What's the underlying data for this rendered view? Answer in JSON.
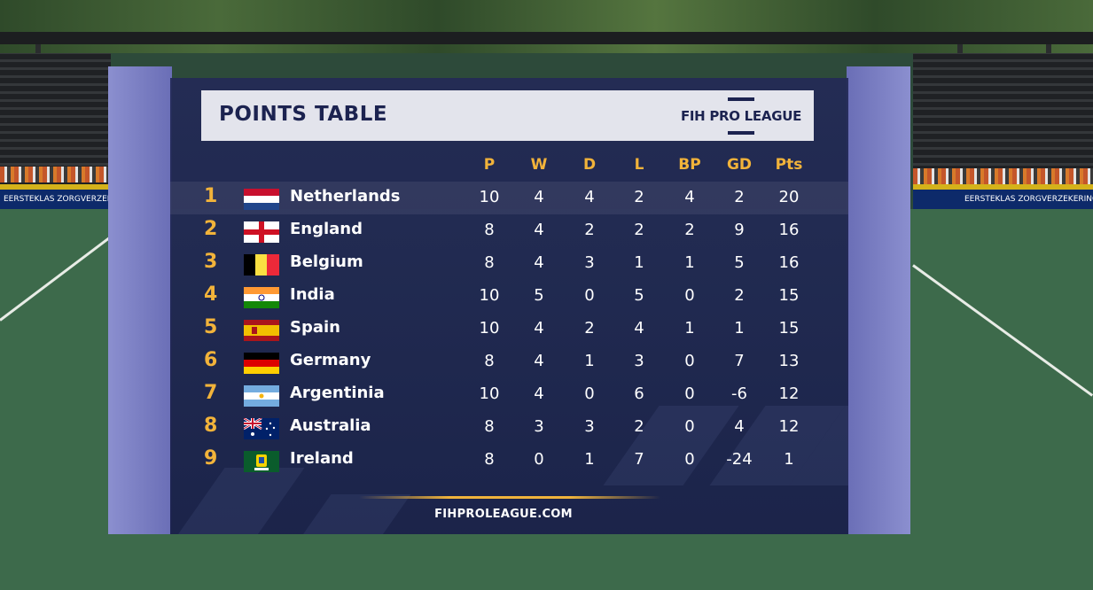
{
  "title": "POINTS TABLE",
  "brand": "FIH PRO LEAGUE",
  "footer": "FIHPROLEAGUE.COM",
  "ad_left": "EERSTEKLAS ZORGVERZEKERING",
  "ad_right": "EERSTEKLAS ZORGVERZEKERING",
  "columns": [
    "P",
    "W",
    "D",
    "L",
    "BP",
    "GD",
    "Pts"
  ],
  "colors": {
    "accent": "#f2b33a",
    "panel": "#232a56",
    "header_bg": "#e3e4ec",
    "header_text": "#1c2350",
    "frame": "#7a7ec4"
  },
  "rows": [
    {
      "rank": "1",
      "team": "Netherlands",
      "flag": "netherlands-flag-icon",
      "stats": [
        "10",
        "4",
        "4",
        "2",
        "4",
        "2",
        "20"
      ]
    },
    {
      "rank": "2",
      "team": "England",
      "flag": "england-flag-icon",
      "stats": [
        "8",
        "4",
        "2",
        "2",
        "2",
        "9",
        "16"
      ]
    },
    {
      "rank": "3",
      "team": "Belgium",
      "flag": "belgium-flag-icon",
      "stats": [
        "8",
        "4",
        "3",
        "1",
        "1",
        "5",
        "16"
      ]
    },
    {
      "rank": "4",
      "team": "India",
      "flag": "india-flag-icon",
      "stats": [
        "10",
        "5",
        "0",
        "5",
        "0",
        "2",
        "15"
      ]
    },
    {
      "rank": "5",
      "team": "Spain",
      "flag": "spain-flag-icon",
      "stats": [
        "10",
        "4",
        "2",
        "4",
        "1",
        "1",
        "15"
      ]
    },
    {
      "rank": "6",
      "team": "Germany",
      "flag": "germany-flag-icon",
      "stats": [
        "8",
        "4",
        "1",
        "3",
        "0",
        "7",
        "13"
      ]
    },
    {
      "rank": "7",
      "team": "Argentinia",
      "flag": "argentina-flag-icon",
      "stats": [
        "10",
        "4",
        "0",
        "6",
        "0",
        "-6",
        "12"
      ]
    },
    {
      "rank": "8",
      "team": "Australia",
      "flag": "australia-flag-icon",
      "stats": [
        "8",
        "3",
        "3",
        "2",
        "0",
        "4",
        "12"
      ]
    },
    {
      "rank": "9",
      "team": "Ireland",
      "flag": "ireland-flag-icon",
      "stats": [
        "8",
        "0",
        "1",
        "7",
        "0",
        "-24",
        "1"
      ]
    }
  ]
}
